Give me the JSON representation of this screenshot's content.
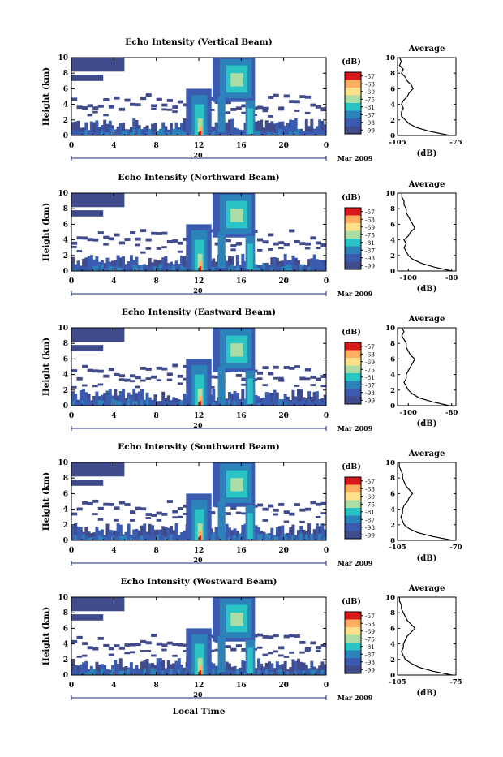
{
  "figure": {
    "date_label": "Mar 2009",
    "date_marker": "20",
    "xlabel": "Local Time",
    "ylabel": "Height (km)",
    "colorbar_unit": "(dB)",
    "avg_title": "Average",
    "avg_xlabel": "(dB)",
    "colorbar_ticks": [
      "-57",
      "-63",
      "-69",
      "-75",
      "-81",
      "-87",
      "-93",
      "-99"
    ],
    "colormap": [
      "#d7191c",
      "#fdae61",
      "#fee08b",
      "#abdda4",
      "#2bc4c4",
      "#2b83ba",
      "#3a5bb0",
      "#404b8c"
    ],
    "background_echo_color": "#404b8c"
  },
  "chart_data": [
    {
      "type": "heatmap",
      "title": "Echo Intensity (Vertical Beam)",
      "x_ticks": [
        "0",
        "4",
        "8",
        "12",
        "16",
        "20",
        "0"
      ],
      "y_ticks": [
        "0",
        "2",
        "4",
        "6",
        "8",
        "10"
      ],
      "xlim": [
        0,
        24
      ],
      "ylim": [
        0,
        10
      ],
      "avg_x_ticks": [
        "-105",
        "-75"
      ],
      "avg_xlim": [
        -105,
        -75
      ],
      "avg_profile": [
        {
          "h": 0.0,
          "v": -78
        },
        {
          "h": 0.5,
          "v": -88
        },
        {
          "h": 1.0,
          "v": -95
        },
        {
          "h": 1.5,
          "v": -99
        },
        {
          "h": 2.0,
          "v": -101
        },
        {
          "h": 2.5,
          "v": -103
        },
        {
          "h": 3.0,
          "v": -103
        },
        {
          "h": 3.5,
          "v": -102
        },
        {
          "h": 4.0,
          "v": -103
        },
        {
          "h": 4.5,
          "v": -102
        },
        {
          "h": 5.0,
          "v": -100
        },
        {
          "h": 5.5,
          "v": -99
        },
        {
          "h": 6.0,
          "v": -97
        },
        {
          "h": 6.5,
          "v": -98
        },
        {
          "h": 7.0,
          "v": -100
        },
        {
          "h": 7.5,
          "v": -101
        },
        {
          "h": 8.0,
          "v": -103
        },
        {
          "h": 8.5,
          "v": -102
        },
        {
          "h": 9.0,
          "v": -104
        },
        {
          "h": 9.5,
          "v": -103
        },
        {
          "h": 10.0,
          "v": -104
        }
      ]
    },
    {
      "type": "heatmap",
      "title": "Echo Intensity (Northward Beam)",
      "x_ticks": [
        "0",
        "4",
        "8",
        "12",
        "16",
        "20",
        "0"
      ],
      "y_ticks": [
        "0",
        "2",
        "4",
        "6",
        "8",
        "10"
      ],
      "xlim": [
        0,
        24
      ],
      "ylim": [
        0,
        10
      ],
      "avg_x_ticks": [
        "-100",
        "-80"
      ],
      "avg_xlim": [
        -105,
        -78
      ],
      "avg_profile": [
        {
          "h": 0.0,
          "v": -80
        },
        {
          "h": 0.5,
          "v": -88
        },
        {
          "h": 1.0,
          "v": -94
        },
        {
          "h": 1.5,
          "v": -98
        },
        {
          "h": 2.0,
          "v": -100
        },
        {
          "h": 2.5,
          "v": -101
        },
        {
          "h": 3.0,
          "v": -102
        },
        {
          "h": 3.5,
          "v": -101
        },
        {
          "h": 4.0,
          "v": -102
        },
        {
          "h": 4.5,
          "v": -100
        },
        {
          "h": 5.0,
          "v": -99
        },
        {
          "h": 5.5,
          "v": -97
        },
        {
          "h": 6.0,
          "v": -98
        },
        {
          "h": 6.5,
          "v": -99
        },
        {
          "h": 7.0,
          "v": -100
        },
        {
          "h": 7.5,
          "v": -101
        },
        {
          "h": 8.0,
          "v": -101
        },
        {
          "h": 8.5,
          "v": -102
        },
        {
          "h": 9.0,
          "v": -102
        },
        {
          "h": 9.5,
          "v": -103
        },
        {
          "h": 10.0,
          "v": -103
        }
      ]
    },
    {
      "type": "heatmap",
      "title": "Echo Intensity (Eastward Beam)",
      "x_ticks": [
        "0",
        "4",
        "8",
        "12",
        "16",
        "20",
        "0"
      ],
      "y_ticks": [
        "0",
        "2",
        "4",
        "6",
        "8",
        "10"
      ],
      "xlim": [
        0,
        24
      ],
      "ylim": [
        0,
        10
      ],
      "avg_x_ticks": [
        "-100",
        "-80"
      ],
      "avg_xlim": [
        -105,
        -78
      ],
      "avg_profile": [
        {
          "h": 0.0,
          "v": -81
        },
        {
          "h": 0.5,
          "v": -89
        },
        {
          "h": 1.0,
          "v": -95
        },
        {
          "h": 1.5,
          "v": -98
        },
        {
          "h": 2.0,
          "v": -100
        },
        {
          "h": 2.5,
          "v": -101
        },
        {
          "h": 3.0,
          "v": -102
        },
        {
          "h": 3.5,
          "v": -101
        },
        {
          "h": 4.0,
          "v": -101
        },
        {
          "h": 4.5,
          "v": -100
        },
        {
          "h": 5.0,
          "v": -99
        },
        {
          "h": 5.5,
          "v": -98
        },
        {
          "h": 6.0,
          "v": -97
        },
        {
          "h": 6.5,
          "v": -99
        },
        {
          "h": 7.0,
          "v": -100
        },
        {
          "h": 7.5,
          "v": -101
        },
        {
          "h": 8.0,
          "v": -101
        },
        {
          "h": 8.5,
          "v": -102
        },
        {
          "h": 9.0,
          "v": -103
        },
        {
          "h": 9.5,
          "v": -102
        },
        {
          "h": 10.0,
          "v": -103
        }
      ]
    },
    {
      "type": "heatmap",
      "title": "Echo Intensity (Southward Beam)",
      "x_ticks": [
        "0",
        "4",
        "8",
        "12",
        "16",
        "20",
        "0"
      ],
      "y_ticks": [
        "0",
        "2",
        "4",
        "6",
        "8",
        "10"
      ],
      "xlim": [
        0,
        24
      ],
      "ylim": [
        0,
        10
      ],
      "avg_x_ticks": [
        "-105",
        "-70"
      ],
      "avg_xlim": [
        -105,
        -70
      ],
      "avg_profile": [
        {
          "h": 0.0,
          "v": -72
        },
        {
          "h": 0.5,
          "v": -84
        },
        {
          "h": 1.0,
          "v": -93
        },
        {
          "h": 1.5,
          "v": -98
        },
        {
          "h": 2.0,
          "v": -101
        },
        {
          "h": 2.5,
          "v": -102
        },
        {
          "h": 3.0,
          "v": -103
        },
        {
          "h": 3.5,
          "v": -102
        },
        {
          "h": 4.0,
          "v": -102
        },
        {
          "h": 4.5,
          "v": -101
        },
        {
          "h": 5.0,
          "v": -99
        },
        {
          "h": 5.5,
          "v": -98
        },
        {
          "h": 6.0,
          "v": -96
        },
        {
          "h": 6.5,
          "v": -98
        },
        {
          "h": 7.0,
          "v": -100
        },
        {
          "h": 7.5,
          "v": -101
        },
        {
          "h": 8.0,
          "v": -102
        },
        {
          "h": 8.5,
          "v": -102
        },
        {
          "h": 9.0,
          "v": -103
        },
        {
          "h": 9.5,
          "v": -104
        },
        {
          "h": 10.0,
          "v": -104
        }
      ]
    },
    {
      "type": "heatmap",
      "title": "Echo Intensity (Westward Beam)",
      "x_ticks": [
        "0",
        "4",
        "8",
        "12",
        "16",
        "20",
        "0"
      ],
      "y_ticks": [
        "0",
        "2",
        "4",
        "6",
        "8",
        "10"
      ],
      "xlim": [
        0,
        24
      ],
      "ylim": [
        0,
        10
      ],
      "avg_x_ticks": [
        "-105",
        "-75"
      ],
      "avg_xlim": [
        -105,
        -75
      ],
      "avg_profile": [
        {
          "h": 0.0,
          "v": -77
        },
        {
          "h": 0.5,
          "v": -87
        },
        {
          "h": 1.0,
          "v": -94
        },
        {
          "h": 1.5,
          "v": -98
        },
        {
          "h": 2.0,
          "v": -101
        },
        {
          "h": 2.5,
          "v": -102
        },
        {
          "h": 3.0,
          "v": -103
        },
        {
          "h": 3.5,
          "v": -102
        },
        {
          "h": 4.0,
          "v": -102
        },
        {
          "h": 4.5,
          "v": -101
        },
        {
          "h": 5.0,
          "v": -100
        },
        {
          "h": 5.5,
          "v": -98
        },
        {
          "h": 6.0,
          "v": -96
        },
        {
          "h": 6.5,
          "v": -98
        },
        {
          "h": 7.0,
          "v": -100
        },
        {
          "h": 7.5,
          "v": -101
        },
        {
          "h": 8.0,
          "v": -102
        },
        {
          "h": 8.5,
          "v": -103
        },
        {
          "h": 9.0,
          "v": -103
        },
        {
          "h": 9.5,
          "v": -104
        },
        {
          "h": 10.0,
          "v": -104
        }
      ]
    }
  ]
}
